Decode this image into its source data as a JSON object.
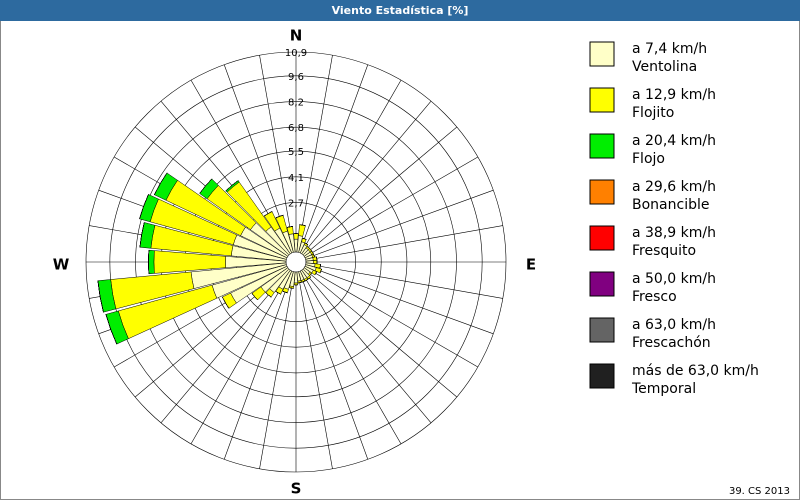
{
  "chart_data": {
    "type": "windrose",
    "title": "Viento Estadística [%]",
    "footer": "39. CS 2013",
    "direction_labels": {
      "N": "N",
      "E": "E",
      "S": "S",
      "W": "W"
    },
    "x": [
      0,
      10,
      20,
      30,
      40,
      50,
      60,
      70,
      80,
      90,
      100,
      110,
      120,
      130,
      140,
      150,
      160,
      170,
      180,
      190,
      200,
      210,
      220,
      230,
      240,
      250,
      260,
      270,
      280,
      290,
      300,
      310,
      320,
      330,
      340,
      350
    ],
    "ylim": [
      0,
      10.9
    ],
    "yticks": [
      {
        "value": 2.7,
        "label": "2,7"
      },
      {
        "value": 4.1,
        "label": "4,1"
      },
      {
        "value": 5.5,
        "label": "5,5"
      },
      {
        "value": 6.8,
        "label": "6,8"
      },
      {
        "value": 8.2,
        "label": "8,2"
      },
      {
        "value": 9.6,
        "label": "9,6"
      },
      {
        "value": 10.9,
        "label": "10,9"
      }
    ],
    "series": [
      {
        "name": "a 7,4 km/h",
        "subname": "Ventolina",
        "color": "#ffffc8",
        "values": [
          0.7,
          0.9,
          0.6,
          0.5,
          0.4,
          0.4,
          0.4,
          0.4,
          0.4,
          0.4,
          0.5,
          0.6,
          0.5,
          0.4,
          0.5,
          0.5,
          0.5,
          0.5,
          0.6,
          0.8,
          1.0,
          1.1,
          1.5,
          1.8,
          3.4,
          4.2,
          5.2,
          3.3,
          3.0,
          3.0,
          2.8,
          2.5,
          1.8,
          1.5,
          1.2,
          1.0
        ]
      },
      {
        "name": "a 12,9 km/h",
        "subname": "Flojito",
        "color": "#ffff00",
        "values": [
          0.3,
          0.6,
          0.2,
          0.1,
          0.1,
          0.1,
          0.1,
          0.1,
          0.2,
          0.2,
          0.3,
          0.3,
          0.2,
          0.1,
          0.1,
          0.1,
          0.1,
          0.1,
          0.1,
          0.1,
          0.2,
          0.3,
          0.3,
          0.6,
          0.5,
          5.3,
          4.4,
          3.9,
          4.4,
          4.7,
          4.5,
          2.9,
          3.0,
          1.0,
          0.9,
          0.4
        ]
      },
      {
        "name": "a 20,4 km/h",
        "subname": "Flojo",
        "color": "#00ee00",
        "values": [
          0,
          0,
          0,
          0,
          0,
          0,
          0,
          0,
          0,
          0,
          0,
          0,
          0,
          0,
          0,
          0,
          0,
          0,
          0,
          0,
          0,
          0,
          0,
          0,
          0,
          0.7,
          0.7,
          0.3,
          0.6,
          0.6,
          0.7,
          0.5,
          0.1,
          0,
          0,
          0
        ]
      },
      {
        "name": "a 29,6 km/h",
        "subname": "Bonancible",
        "color": "#ff8000",
        "values": [
          0,
          0,
          0,
          0,
          0,
          0,
          0,
          0,
          0,
          0,
          0,
          0,
          0,
          0,
          0,
          0,
          0,
          0,
          0,
          0,
          0,
          0,
          0,
          0,
          0,
          0,
          0,
          0,
          0,
          0,
          0,
          0,
          0,
          0,
          0,
          0
        ]
      },
      {
        "name": "a 38,9 km/h",
        "subname": "Fresquito",
        "color": "#ff0000",
        "values": [
          0,
          0,
          0,
          0,
          0,
          0,
          0,
          0,
          0,
          0,
          0,
          0,
          0,
          0,
          0,
          0,
          0,
          0,
          0,
          0,
          0,
          0,
          0,
          0,
          0,
          0,
          0,
          0,
          0,
          0,
          0,
          0,
          0,
          0,
          0,
          0
        ]
      },
      {
        "name": "a 50,0 km/h",
        "subname": "Fresco",
        "color": "#800080",
        "values": [
          0,
          0,
          0,
          0,
          0,
          0,
          0,
          0,
          0,
          0,
          0,
          0,
          0,
          0,
          0,
          0,
          0,
          0,
          0,
          0,
          0,
          0,
          0,
          0,
          0,
          0,
          0,
          0,
          0,
          0,
          0,
          0,
          0,
          0,
          0,
          0
        ]
      },
      {
        "name": "a 63,0 km/h",
        "subname": "Frescachón",
        "color": "#646464",
        "values": [
          0,
          0,
          0,
          0,
          0,
          0,
          0,
          0,
          0,
          0,
          0,
          0,
          0,
          0,
          0,
          0,
          0,
          0,
          0,
          0,
          0,
          0,
          0,
          0,
          0,
          0,
          0,
          0,
          0,
          0,
          0,
          0,
          0,
          0,
          0,
          0
        ]
      },
      {
        "name": "más de 63,0 km/h",
        "subname": "Temporal",
        "color": "#202020",
        "values": [
          0,
          0,
          0,
          0,
          0,
          0,
          0,
          0,
          0,
          0,
          0,
          0,
          0,
          0,
          0,
          0,
          0,
          0,
          0,
          0,
          0,
          0,
          0,
          0,
          0,
          0,
          0,
          0,
          0,
          0,
          0,
          0,
          0,
          0,
          0,
          0
        ]
      }
    ]
  }
}
